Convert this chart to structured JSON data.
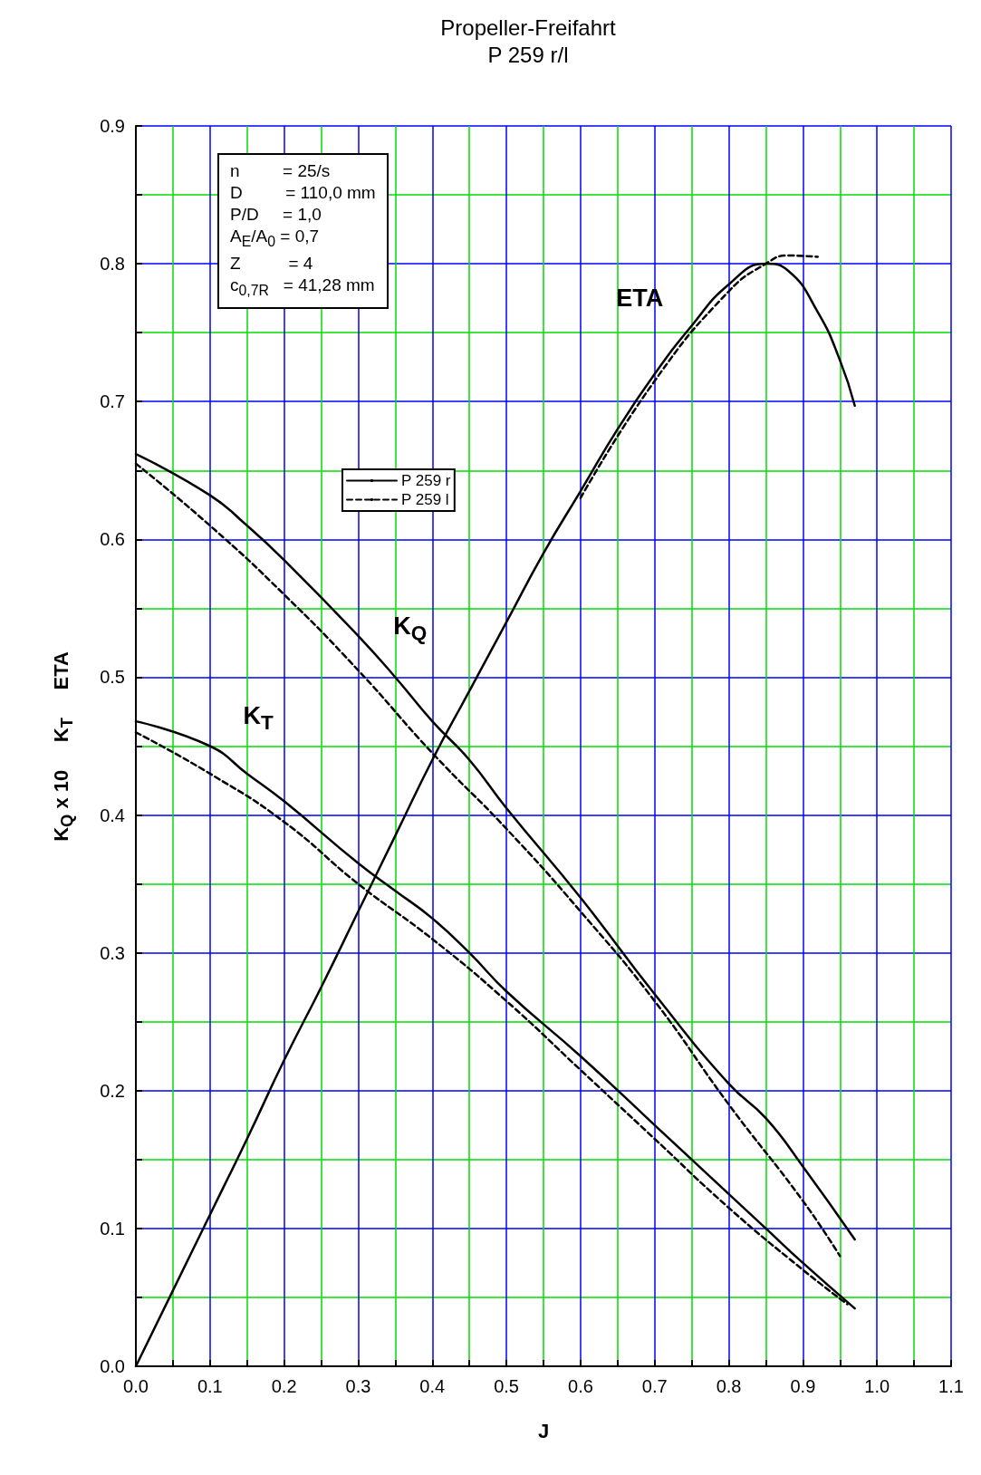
{
  "chart_data": {
    "type": "line",
    "title": "Propeller-Freifahrt",
    "subtitle": "P 259 r/l",
    "xlabel": "J",
    "ylabel": "K$_{Q}$ x 10     K$_{T}$     ETA",
    "xlim": [
      0,
      1.1
    ],
    "xticks": [
      {
        "value": 0,
        "label": "0.0"
      },
      {
        "value": 0.05,
        "label": null
      },
      0.1,
      {
        "value": 0.15,
        "label": null
      },
      0.2,
      {
        "value": 0.25,
        "label": null
      },
      0.3,
      {
        "value": 0.35,
        "label": null
      },
      0.4,
      {
        "value": 0.45,
        "label": null
      },
      0.5,
      {
        "value": 0.55,
        "label": null
      },
      0.6,
      {
        "value": 0.65,
        "label": null
      },
      0.7,
      {
        "value": 0.75,
        "label": null
      },
      0.8,
      {
        "value": 0.85,
        "label": null
      },
      0.9,
      {
        "value": 0.95,
        "label": null
      },
      {
        "value": 1,
        "label": "1.0"
      },
      {
        "value": 1.05,
        "label": null
      },
      1.1
    ],
    "ylim": [
      0,
      0.9
    ],
    "yticks": [
      {
        "value": 0,
        "label": "0.0"
      },
      {
        "value": 0.05,
        "label": null
      },
      0.1,
      {
        "value": 0.15,
        "label": null
      },
      0.2,
      {
        "value": 0.25,
        "label": null
      },
      0.3,
      {
        "value": 0.35,
        "label": null
      },
      0.4,
      {
        "value": 0.45,
        "label": null
      },
      0.5,
      {
        "value": 0.55,
        "label": null
      },
      0.6,
      {
        "value": 0.65,
        "label": null
      },
      0.7,
      {
        "value": 0.75,
        "label": null
      },
      0.8,
      {
        "value": 0.85,
        "label": null
      },
      0.9
    ],
    "grid": true,
    "legend": "top left",
    "marker": "none",
    "series": [
      {
        "name": "P 259 r",
        "color": "#000000",
        "line_style": "solid",
        "x": [
          0,
          0.1,
          0.15,
          0.2,
          0.3,
          0.35,
          0.4,
          0.45,
          0.5,
          0.6,
          0.7,
          0.8,
          0.85,
          0.9,
          0.97
        ],
        "values": [
          0.468,
          0.45,
          0.43,
          0.41,
          0.365,
          0.345,
          0.325,
          0.3,
          0.272,
          0.225,
          0.175,
          0.125,
          0.1,
          0.075,
          0.042
        ]
      },
      {
        "name": "P 259 l",
        "color": "#000000",
        "line_style": "dashed",
        "x": [
          0,
          0.1,
          0.2,
          0.3,
          0.4,
          0.5,
          0.6,
          0.7,
          0.8,
          0.9,
          0.96
        ],
        "values": [
          0.46,
          0.43,
          0.395,
          0.35,
          0.31,
          0.265,
          0.215,
          0.165,
          0.115,
          0.07,
          0.045
        ]
      },
      {
        "color": "#000000",
        "line_style": "solid",
        "x": [
          0,
          0.1,
          0.15,
          0.2,
          0.3,
          0.35,
          0.4,
          0.45,
          0.5,
          0.6,
          0.7,
          0.8,
          0.85,
          0.9,
          0.97
        ],
        "values": [
          0.662,
          0.632,
          0.61,
          0.585,
          0.53,
          0.5,
          0.468,
          0.44,
          0.405,
          0.34,
          0.27,
          0.205,
          0.18,
          0.145,
          0.092
        ]
      },
      {
        "color": "#000000",
        "line_style": "dashed",
        "x": [
          0,
          0.1,
          0.2,
          0.3,
          0.4,
          0.5,
          0.6,
          0.7,
          0.8,
          0.9,
          0.95
        ],
        "values": [
          0.655,
          0.61,
          0.56,
          0.505,
          0.445,
          0.39,
          0.33,
          0.265,
          0.19,
          0.12,
          0.08
        ]
      },
      {
        "color": "#000000",
        "line_style": "solid",
        "x": [
          0,
          0.05,
          0.1,
          0.15,
          0.2,
          0.25,
          0.3,
          0.35,
          0.4,
          0.45,
          0.5,
          0.55,
          0.6,
          0.65,
          0.7,
          0.75,
          0.8,
          0.85,
          0.88,
          0.92,
          0.95,
          0.97
        ],
        "values": [
          0,
          0.055,
          0.11,
          0.165,
          0.222,
          0.275,
          0.33,
          0.385,
          0.44,
          0.49,
          0.54,
          0.59,
          0.635,
          0.68,
          0.72,
          0.755,
          0.785,
          0.8,
          0.795,
          0.765,
          0.73,
          0.697
        ]
      },
      {
        "color": "#000000",
        "line_style": "dashed",
        "x": [
          0.6,
          0.7,
          0.8,
          0.85,
          0.88,
          0.92
        ],
        "values": [
          0.63,
          0.715,
          0.78,
          0.8,
          0.806,
          0.805
        ]
      }
    ],
    "annotations": [
      "ETA",
      "K$_{Q}$",
      "K$_{T}$",
      "n         = 25/s",
      "D         = 110,0 mm",
      "P/D     = 1,0",
      "A$_{E}$/A$_{0}$ = 0,7",
      "Z          = 4",
      "c$_{0,7R}$   = 41,28 mm"
    ]
  }
}
